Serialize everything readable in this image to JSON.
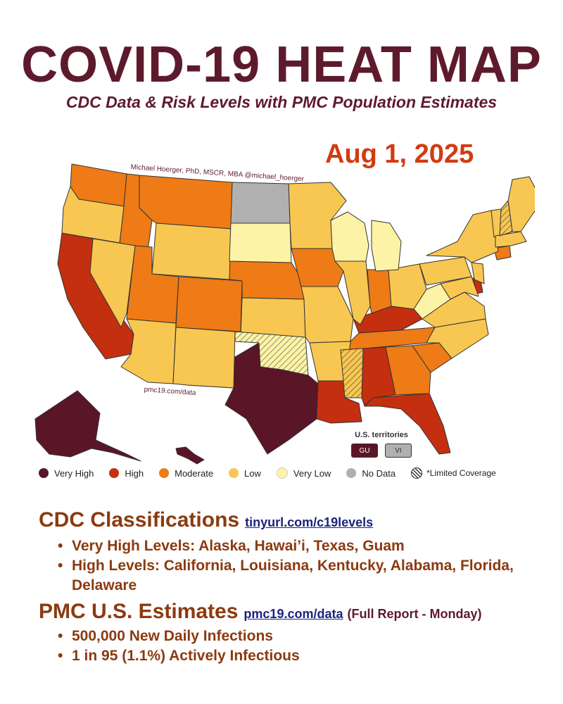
{
  "header": {
    "title": "COVID-19 HEAT MAP",
    "subtitle": "CDC Data & Risk Levels with PMC Population Estimates",
    "date": "Aug 1, 2025"
  },
  "map": {
    "credit": "Michael Hoerger, PhD, MSCR, MBA  @michael_hoerger",
    "watermark": "pmc19.com/data",
    "level_colors": {
      "Very High": "#5a1526",
      "High": "#c42f10",
      "Moderate": "#ee7b16",
      "Low": "#f8c752",
      "Very Low": "#fdf3a6",
      "No Data": "#b0b0b0"
    },
    "states": {
      "Alaska": "Very High",
      "Hawaii": "Very High",
      "Texas": "Very High",
      "California": "High",
      "Louisiana": "High",
      "Kentucky": "High",
      "Alabama": "High",
      "Florida": "High",
      "Delaware": "High",
      "Washington": "Moderate",
      "Idaho": "Moderate",
      "Montana": "Moderate",
      "Utah": "Moderate",
      "Colorado": "Moderate",
      "Nebraska": "Moderate",
      "Iowa": "Moderate",
      "Indiana": "Moderate",
      "Tennessee": "Moderate",
      "Georgia": "Moderate",
      "South Carolina": "Moderate",
      "Connecticut": "Moderate",
      "Oregon": "Low",
      "Nevada": "Low",
      "Arizona": "Low",
      "New Mexico": "Low",
      "Wyoming": "Low",
      "Kansas": "Low",
      "Minnesota": "Low",
      "Missouri": "Low",
      "Arkansas": "Low",
      "Illinois": "Low",
      "Ohio": "Low",
      "Pennsylvania": "Low",
      "New York": "Low",
      "Virginia": "Low",
      "North Carolina": "Low",
      "Maine": "Low",
      "Vermont": "Low",
      "Massachusetts": "Low",
      "New Jersey": "Low",
      "Maryland": "Low",
      "South Dakota": "Very Low",
      "Wisconsin": "Very Low",
      "Michigan": "Very Low",
      "West Virginia": "Very Low",
      "North Dakota": "No Data",
      "Oklahoma": "Very Low*",
      "Mississippi": "Low*",
      "New Hampshire": "Low*"
    },
    "territories": {
      "label": "U.S. territories",
      "items": [
        {
          "code": "GU",
          "level": "Very High",
          "color": "#5a1526"
        },
        {
          "code": "VI",
          "level": "No Data",
          "color": "#b0b0b0"
        }
      ]
    }
  },
  "legend": [
    {
      "label": "Very High",
      "color": "#5a1526"
    },
    {
      "label": "High",
      "color": "#c42f10"
    },
    {
      "label": "Moderate",
      "color": "#ee7b16"
    },
    {
      "label": "Low",
      "color": "#f8c752"
    },
    {
      "label": "Very Low",
      "color": "#fdf3a6"
    },
    {
      "label": "No Data",
      "color": "#b0b0b0"
    },
    {
      "label": "*Limited Coverage",
      "color": "hatch"
    }
  ],
  "cdc": {
    "heading": "CDC Classifications",
    "link": "tinyurl.com/c19levels",
    "bullets": [
      "Very High Levels: Alaska, Hawai’i, Texas, Guam",
      "High Levels: California, Louisiana, Kentucky, Alabama, Florida, Delaware"
    ]
  },
  "pmc": {
    "heading": "PMC U.S. Estimates",
    "link": "pmc19.com/data",
    "note": "(Full Report - Monday)",
    "bullets": [
      "500,000 New Daily Infections",
      "1 in 95 (1.1%) Actively Infectious"
    ]
  }
}
